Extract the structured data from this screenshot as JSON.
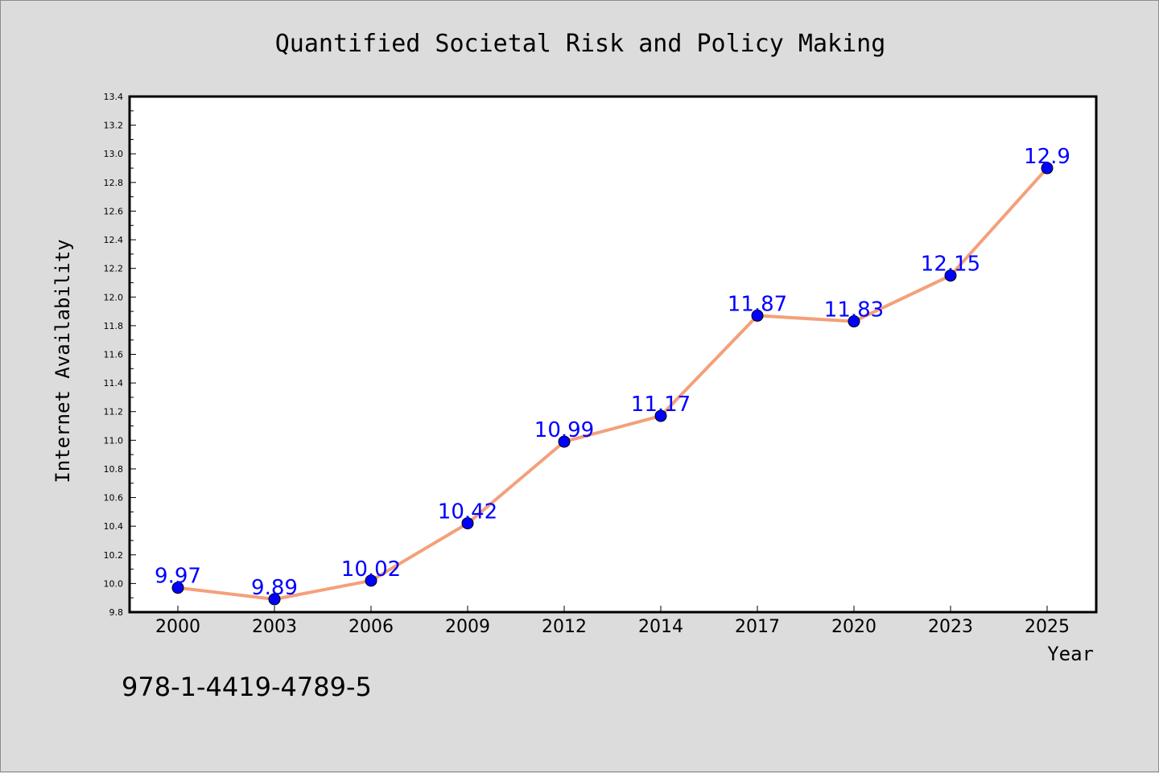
{
  "chart_data": {
    "type": "line",
    "title": "Quantified Societal Risk and Policy Making",
    "xlabel": "Year",
    "ylabel": "Internet Availability",
    "categories": [
      "2000",
      "2003",
      "2006",
      "2009",
      "2012",
      "2014",
      "2017",
      "2020",
      "2023",
      "2025"
    ],
    "series": [
      {
        "values": [
          9.97,
          9.89,
          10.02,
          10.42,
          10.99,
          11.17,
          11.87,
          11.83,
          12.15,
          12.9
        ],
        "labels": [
          "9.97",
          "9.89",
          "10.02",
          "10.42",
          "10.99",
          "11.17",
          "11.87",
          "11.83",
          "12.15",
          "12.9"
        ],
        "line_color": "#f4a07a",
        "marker_color": "#0000ff"
      }
    ],
    "yticks": [
      "9.8",
      "10.0",
      "10.2",
      "10.4",
      "10.6",
      "10.8",
      "11.0",
      "11.2",
      "11.4",
      "11.6",
      "11.8",
      "12.0",
      "12.2",
      "12.4",
      "12.6",
      "12.8",
      "13.0",
      "13.2",
      "13.4"
    ],
    "ylim": [
      9.8,
      13.4
    ],
    "grid": false,
    "background_color": "#dcdcdc",
    "plot_background": "#ffffff"
  },
  "footnote": "978-1-4419-4789-5"
}
